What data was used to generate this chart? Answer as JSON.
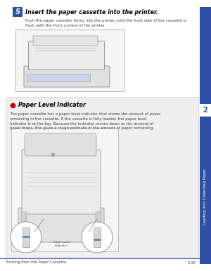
{
  "bg_color": "#ffffff",
  "step_number": "5",
  "step_number_bg": "#2e4fa3",
  "step_title": "Insert the paper cassette into the printer.",
  "step_desc": "Push the paper cassette firmly into the printer until the front side of the cassette is\nflush with the front surface of the printer.",
  "section_title": "Paper Level Indicator",
  "section_bullet_color": "#cc0000",
  "section_body": "The paper cassette has a paper level indicator that shows the amount of paper\nremaining in the cassette. If the cassette is fully loaded, the paper level\nindicator is at the top. Because the indicator moves down as the amount of\npaper drops, this gives a rough estimate of the amount of paper remaining.",
  "callout_label": "Paper Level\nIndicator",
  "footer_left": "Printing from the Paper Cassette",
  "footer_right": "2-39",
  "footer_line_color": "#3355aa",
  "sidebar_color": "#2e4fa3",
  "sidebar_text": "Loading and Collecting Paper",
  "sidebar_chapter": "2",
  "text_color": "#444444",
  "light_gray_bg": "#efefef",
  "top_img_border": "#aaaaaa",
  "bot_img_border": "#aaaaaa"
}
